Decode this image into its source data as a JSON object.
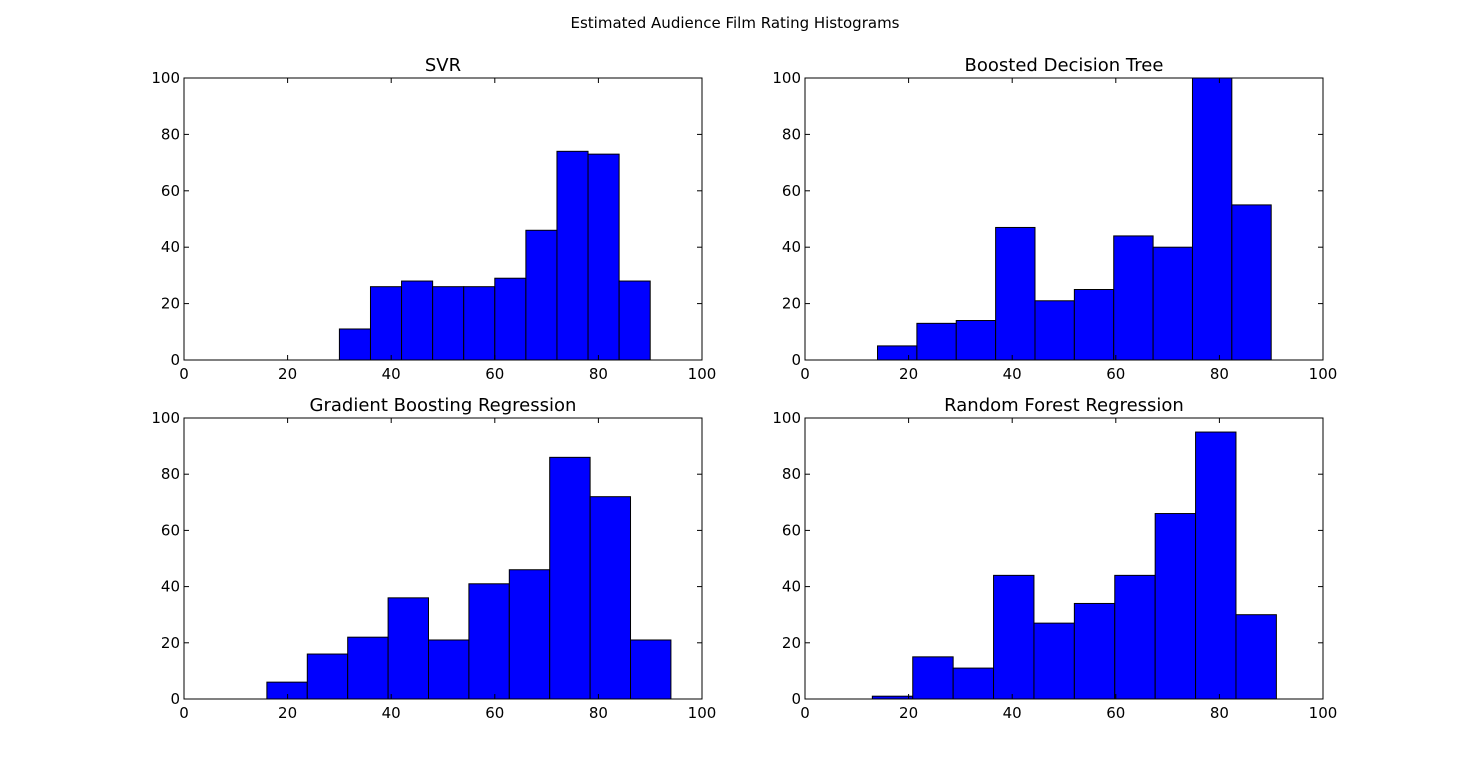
{
  "figure_title": "Estimated Audience Film Rating Histograms",
  "bar_color": "#0000ff",
  "chart_data": [
    {
      "type": "bar",
      "title": "SVR",
      "xlabel": "",
      "ylabel": "",
      "xlim": [
        0,
        100
      ],
      "ylim": [
        0,
        100
      ],
      "xticks": [
        0,
        20,
        40,
        60,
        80,
        100
      ],
      "yticks": [
        0,
        20,
        40,
        60,
        80,
        100
      ],
      "grid": false,
      "bins": [
        {
          "x0": 30.0,
          "x1": 36.0,
          "count": 11
        },
        {
          "x0": 36.0,
          "x1": 42.0,
          "count": 26
        },
        {
          "x0": 42.0,
          "x1": 48.0,
          "count": 28
        },
        {
          "x0": 48.0,
          "x1": 54.0,
          "count": 26
        },
        {
          "x0": 54.0,
          "x1": 60.0,
          "count": 26
        },
        {
          "x0": 60.0,
          "x1": 66.0,
          "count": 29
        },
        {
          "x0": 66.0,
          "x1": 72.0,
          "count": 46
        },
        {
          "x0": 72.0,
          "x1": 78.0,
          "count": 74
        },
        {
          "x0": 78.0,
          "x1": 84.0,
          "count": 73
        },
        {
          "x0": 84.0,
          "x1": 90.0,
          "count": 28
        }
      ]
    },
    {
      "type": "bar",
      "title": "Boosted Decision Tree",
      "xlabel": "",
      "ylabel": "",
      "xlim": [
        0,
        100
      ],
      "ylim": [
        0,
        100
      ],
      "xticks": [
        0,
        20,
        40,
        60,
        80,
        100
      ],
      "yticks": [
        0,
        20,
        40,
        60,
        80,
        100
      ],
      "grid": false,
      "bins": [
        {
          "x0": 14.0,
          "x1": 21.6,
          "count": 5
        },
        {
          "x0": 21.6,
          "x1": 29.2,
          "count": 13
        },
        {
          "x0": 29.2,
          "x1": 36.8,
          "count": 14
        },
        {
          "x0": 36.8,
          "x1": 44.4,
          "count": 47
        },
        {
          "x0": 44.4,
          "x1": 52.0,
          "count": 21
        },
        {
          "x0": 52.0,
          "x1": 59.6,
          "count": 25
        },
        {
          "x0": 59.6,
          "x1": 67.2,
          "count": 44
        },
        {
          "x0": 67.2,
          "x1": 74.8,
          "count": 40
        },
        {
          "x0": 74.8,
          "x1": 82.4,
          "count": 100
        },
        {
          "x0": 82.4,
          "x1": 90.0,
          "count": 55
        }
      ]
    },
    {
      "type": "bar",
      "title": "Gradient Boosting Regression",
      "xlabel": "",
      "ylabel": "",
      "xlim": [
        0,
        100
      ],
      "ylim": [
        0,
        100
      ],
      "xticks": [
        0,
        20,
        40,
        60,
        80,
        100
      ],
      "yticks": [
        0,
        20,
        40,
        60,
        80,
        100
      ],
      "grid": false,
      "bins": [
        {
          "x0": 16.0,
          "x1": 23.8,
          "count": 6
        },
        {
          "x0": 23.8,
          "x1": 31.6,
          "count": 16
        },
        {
          "x0": 31.6,
          "x1": 39.4,
          "count": 22
        },
        {
          "x0": 39.4,
          "x1": 47.2,
          "count": 36
        },
        {
          "x0": 47.2,
          "x1": 55.0,
          "count": 21
        },
        {
          "x0": 55.0,
          "x1": 62.8,
          "count": 41
        },
        {
          "x0": 62.8,
          "x1": 70.6,
          "count": 46
        },
        {
          "x0": 70.6,
          "x1": 78.4,
          "count": 86
        },
        {
          "x0": 78.4,
          "x1": 86.2,
          "count": 72
        },
        {
          "x0": 86.2,
          "x1": 94.0,
          "count": 21
        }
      ]
    },
    {
      "type": "bar",
      "title": "Random Forest Regression",
      "xlabel": "",
      "ylabel": "",
      "xlim": [
        0,
        100
      ],
      "ylim": [
        0,
        100
      ],
      "xticks": [
        0,
        20,
        40,
        60,
        80,
        100
      ],
      "yticks": [
        0,
        20,
        40,
        60,
        80,
        100
      ],
      "grid": false,
      "bins": [
        {
          "x0": 13.0,
          "x1": 20.8,
          "count": 1
        },
        {
          "x0": 20.8,
          "x1": 28.6,
          "count": 15
        },
        {
          "x0": 28.6,
          "x1": 36.4,
          "count": 11
        },
        {
          "x0": 36.4,
          "x1": 44.2,
          "count": 44
        },
        {
          "x0": 44.2,
          "x1": 52.0,
          "count": 27
        },
        {
          "x0": 52.0,
          "x1": 59.8,
          "count": 34
        },
        {
          "x0": 59.8,
          "x1": 67.6,
          "count": 44
        },
        {
          "x0": 67.6,
          "x1": 75.4,
          "count": 66
        },
        {
          "x0": 75.4,
          "x1": 83.2,
          "count": 95
        },
        {
          "x0": 83.2,
          "x1": 91.0,
          "count": 30
        }
      ]
    }
  ]
}
